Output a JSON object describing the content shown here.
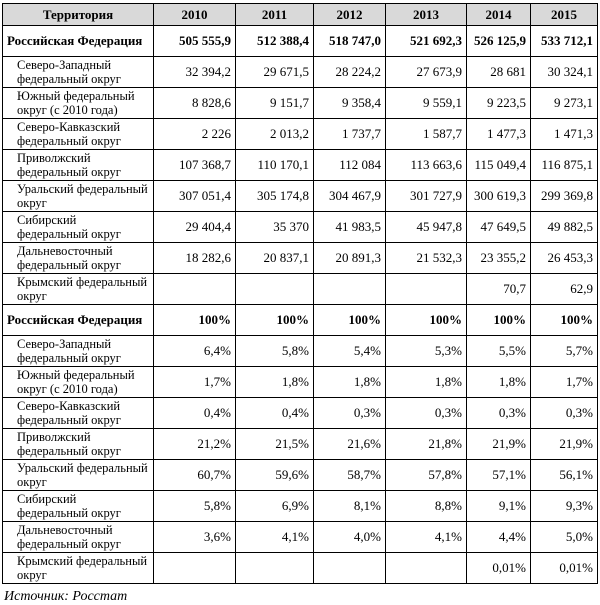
{
  "table": {
    "header": [
      "Территория",
      "2010",
      "2011",
      "2012",
      "2013",
      "2014",
      "2015"
    ],
    "blocks": [
      {
        "rows": [
          [
            "Российская Федерация",
            "505 555,9",
            "512 388,4",
            "518 747,0",
            "521 692,3",
            "526 125,9",
            "533 712,1"
          ],
          [
            "Северо-Западный федеральный округ",
            "32 394,2",
            "29 671,5",
            "28 224,2",
            "27 673,9",
            "28 681",
            "30 324,1"
          ],
          [
            "Южный федеральный округ (с 2010 года)",
            "8 828,6",
            "9 151,7",
            "9 358,4",
            "9 559,1",
            "9 223,5",
            "9 273,1"
          ],
          [
            "Северо-Кавказский федеральный округ",
            "2 226",
            "2 013,2",
            "1 737,7",
            "1 587,7",
            "1 477,3",
            "1 471,3"
          ],
          [
            "Приволжский федеральный округ",
            "107 368,7",
            "110 170,1",
            "112 084",
            "113 663,6",
            "115 049,4",
            "116 875,1"
          ],
          [
            "Уральский федеральный округ",
            "307 051,4",
            "305 174,8",
            "304 467,9",
            "301 727,9",
            "300 619,3",
            "299 369,8"
          ],
          [
            "Сибирский федеральный округ",
            "29 404,4",
            "35 370",
            "41 983,5",
            "45 947,8",
            "47 649,5",
            "49 882,5"
          ],
          [
            "Дальневосточный федеральный округ",
            "18 282,6",
            "20 837,1",
            "20 891,3",
            "21 532,3",
            "23 355,2",
            "26 453,3"
          ],
          [
            "Крымский федеральный округ",
            null,
            null,
            null,
            null,
            "70,7",
            "62,9"
          ]
        ]
      },
      {
        "rows": [
          [
            "Российская Федерация",
            "100%",
            "100%",
            "100%",
            "100%",
            "100%",
            "100%"
          ],
          [
            "Северо-Западный федеральный округ",
            "6,4%",
            "5,8%",
            "5,4%",
            "5,3%",
            "5,5%",
            "5,7%"
          ],
          [
            "Южный федеральный округ (с 2010 года)",
            "1,7%",
            "1,8%",
            "1,8%",
            "1,8%",
            "1,8%",
            "1,7%"
          ],
          [
            "Северо-Кавказский федеральный округ",
            "0,4%",
            "0,4%",
            "0,3%",
            "0,3%",
            "0,3%",
            "0,3%"
          ],
          [
            "Приволжский федеральный округ",
            "21,2%",
            "21,5%",
            "21,6%",
            "21,8%",
            "21,9%",
            "21,9%"
          ],
          [
            "Уральский федеральный округ",
            "60,7%",
            "59,6%",
            "58,7%",
            "57,8%",
            "57,1%",
            "56,1%"
          ],
          [
            "Сибирский федеральный округ",
            "5,8%",
            "6,9%",
            "8,1%",
            "8,8%",
            "9,1%",
            "9,3%"
          ],
          [
            "Дальневосточный федеральный округ",
            "3,6%",
            "4,1%",
            "4,0%",
            "4,1%",
            "4,4%",
            "5,0%"
          ],
          [
            "Крымский федеральный округ",
            null,
            null,
            null,
            null,
            "0,01%",
            "0,01%"
          ]
        ]
      }
    ],
    "source": "Источник: Росстат"
  }
}
